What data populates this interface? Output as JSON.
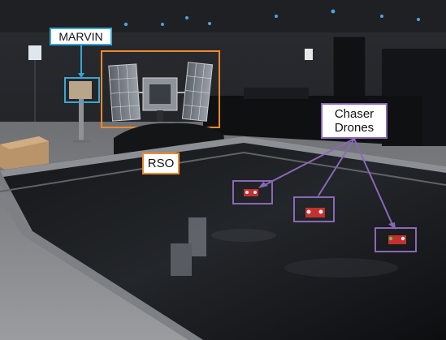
{
  "annotations": {
    "marvin": {
      "label": "MARVIN",
      "color": "#39a6d6"
    },
    "rso": {
      "label": "RSO",
      "color": "#ee8a2b"
    },
    "chaser": {
      "label": "Chaser\nDrones",
      "color": "#8a68b8"
    }
  },
  "scene": {
    "objects": [
      "ceiling-lights",
      "marvin-gimbal",
      "rso-satellite-model",
      "black-curtain",
      "cardboard-box",
      "flat-floor-table",
      "chaser-drone",
      "chaser-drone",
      "chaser-drone"
    ]
  }
}
